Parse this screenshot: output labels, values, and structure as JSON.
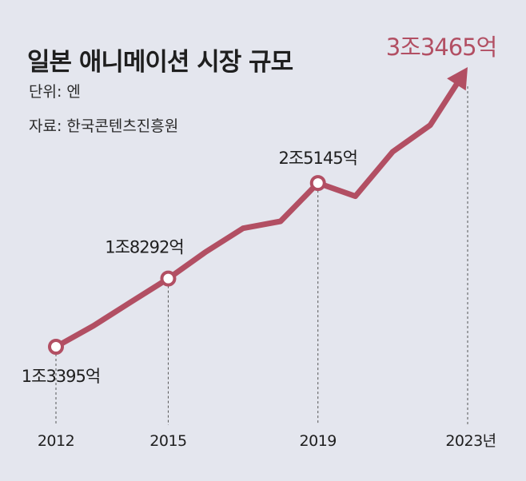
{
  "title": "일본 애니메이션 시장 규모",
  "unit_label": "단위: 엔",
  "source_label": "자료: 한국콘텐츠진흥원",
  "colors": {
    "background": "#e4e6ee",
    "line": "#b24f63",
    "highlight_label": "#b24f63",
    "text": "#1e1e1e"
  },
  "chart_data": {
    "type": "line",
    "title": "일본 애니메이션 시장 규모",
    "unit": "엔",
    "x": [
      2012,
      2013,
      2014,
      2015,
      2016,
      2017,
      2018,
      2019,
      2020,
      2021,
      2022,
      2023
    ],
    "values": [
      13395,
      14900,
      16600,
      18292,
      20200,
      21900,
      22400,
      25145,
      24200,
      27400,
      29300,
      33465
    ],
    "value_unit": "억 엔",
    "x_tick_labels": [
      "2012",
      "2015",
      "2019",
      "2023년"
    ],
    "x_tick_positions": [
      2012,
      2015,
      2019,
      2023
    ],
    "annotations": [
      {
        "x": 2012,
        "text": "1조3395억",
        "marker": true
      },
      {
        "x": 2015,
        "text": "1조8292억",
        "marker": true
      },
      {
        "x": 2019,
        "text": "2조5145억",
        "marker": true
      },
      {
        "x": 2023,
        "text": "3조3465억",
        "marker": false,
        "highlight": true,
        "arrow": true
      }
    ],
    "gridlines": "dashed vertical guide lines at labeled years",
    "legend": "none"
  }
}
